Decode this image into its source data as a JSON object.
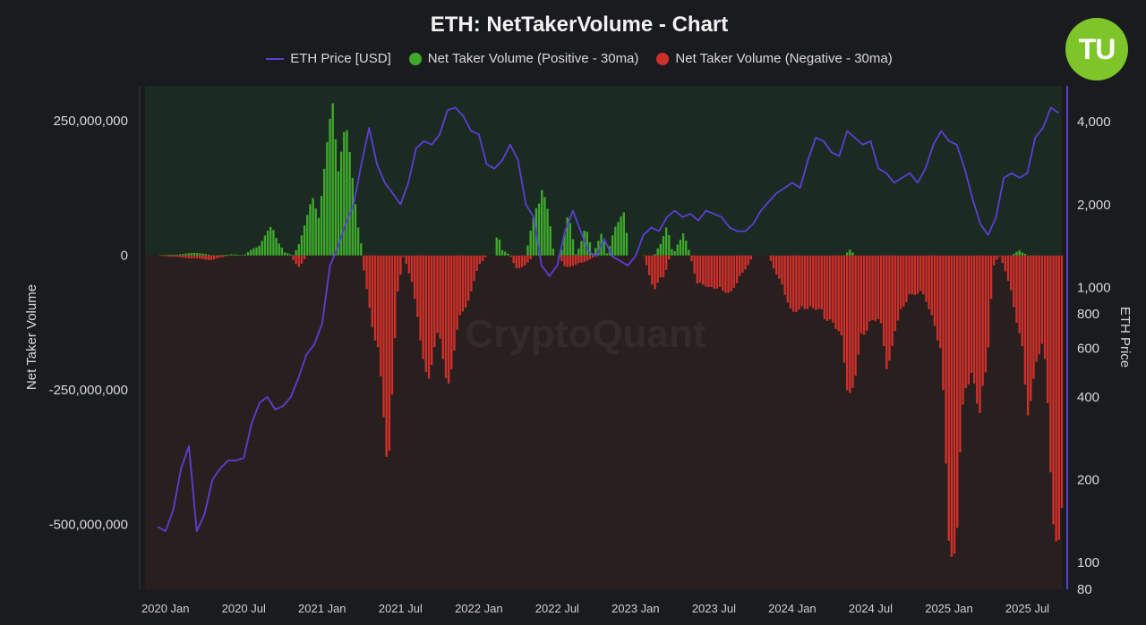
{
  "chart_data": {
    "type": "bar",
    "title": "ETH: NetTakerVolume - Chart",
    "watermark": "CryptoQuant",
    "legend": {
      "placement": "top-center",
      "entries": [
        {
          "label": "ETH Price [USD]",
          "color": "#5b3fd6",
          "kind": "line"
        },
        {
          "label": "Net Taker Volume (Positive - 30ma)",
          "color": "#3fa92c",
          "kind": "dot"
        },
        {
          "label": "Net Taker Volume (Negative - 30ma)",
          "color": "#d0302a",
          "kind": "dot"
        }
      ]
    },
    "ylabel": "Net Taker Volume",
    "y2label": "ETH Price",
    "ylim": [
      -620000000,
      315000000
    ],
    "y_ticks": [
      {
        "value": 250000000,
        "label": "250,000,000"
      },
      {
        "value": 0,
        "label": "0"
      },
      {
        "value": -250000000,
        "label": "-250,000,000"
      },
      {
        "value": -500000000,
        "label": "-500,000,000"
      }
    ],
    "y2lim": [
      80,
      5400
    ],
    "y2_scale": "log",
    "y2_ticks": [
      {
        "value": 4000,
        "label": "4,000"
      },
      {
        "value": 2000,
        "label": "2,000"
      },
      {
        "value": 1000,
        "label": "1,000"
      },
      {
        "value": 800,
        "label": "800"
      },
      {
        "value": 600,
        "label": "600"
      },
      {
        "value": 400,
        "label": "400"
      },
      {
        "value": 200,
        "label": "200"
      },
      {
        "value": 100,
        "label": "100"
      },
      {
        "value": 80,
        "label": "80"
      }
    ],
    "xlim": [
      2019.87,
      2025.72
    ],
    "x_ticks": [
      {
        "value": 2020.0,
        "label": "2020 Jan"
      },
      {
        "value": 2020.5,
        "label": "2020 Jul"
      },
      {
        "value": 2021.0,
        "label": "2021 Jan"
      },
      {
        "value": 2021.5,
        "label": "2021 Jul"
      },
      {
        "value": 2022.0,
        "label": "2022 Jan"
      },
      {
        "value": 2022.5,
        "label": "2022 Jul"
      },
      {
        "value": 2023.0,
        "label": "2023 Jan"
      },
      {
        "value": 2023.5,
        "label": "2023 Jul"
      },
      {
        "value": 2024.0,
        "label": "2024 Jan"
      },
      {
        "value": 2024.5,
        "label": "2024 Jul"
      },
      {
        "value": 2025.0,
        "label": "2025 Jan"
      },
      {
        "value": 2025.5,
        "label": "2025 Jul"
      }
    ],
    "series": [
      {
        "name": "Net Taker Volume (Positive - 30ma)",
        "color": "#3fa92c",
        "points": [
          [
            2019.95,
            0
          ],
          [
            2020.1,
            2000000
          ],
          [
            2020.2,
            5000000
          ],
          [
            2020.3,
            0
          ],
          [
            2020.45,
            2000000
          ],
          [
            2020.5,
            0
          ],
          [
            2020.6,
            20000000
          ],
          [
            2020.68,
            50000000
          ],
          [
            2020.76,
            5000000
          ],
          [
            2020.82,
            0
          ],
          [
            2020.9,
            60000000
          ],
          [
            2020.94,
            100000000
          ],
          [
            2020.98,
            80000000
          ],
          [
            2021.03,
            180000000
          ],
          [
            2021.07,
            265000000
          ],
          [
            2021.1,
            180000000
          ],
          [
            2021.15,
            220000000
          ],
          [
            2021.22,
            80000000
          ],
          [
            2021.26,
            0
          ],
          [
            2022.1,
            0
          ],
          [
            2022.12,
            50000000
          ],
          [
            2022.15,
            10000000
          ],
          [
            2022.2,
            0
          ],
          [
            2022.3,
            0
          ],
          [
            2022.36,
            80000000
          ],
          [
            2022.4,
            130000000
          ],
          [
            2022.45,
            60000000
          ],
          [
            2022.48,
            0
          ],
          [
            2022.52,
            0
          ],
          [
            2022.57,
            70000000
          ],
          [
            2022.62,
            0
          ],
          [
            2022.68,
            50000000
          ],
          [
            2022.73,
            0
          ],
          [
            2022.78,
            45000000
          ],
          [
            2022.82,
            0
          ],
          [
            2022.88,
            60000000
          ],
          [
            2022.92,
            90000000
          ],
          [
            2022.96,
            0
          ],
          [
            2023.12,
            0
          ],
          [
            2023.2,
            50000000
          ],
          [
            2023.24,
            0
          ],
          [
            2023.3,
            45000000
          ],
          [
            2023.35,
            0
          ],
          [
            2024.33,
            0
          ],
          [
            2024.37,
            10000000
          ],
          [
            2024.4,
            0
          ],
          [
            2025.4,
            0
          ],
          [
            2025.45,
            10000000
          ],
          [
            2025.5,
            0
          ],
          [
            2025.72,
            0
          ]
        ]
      },
      {
        "name": "Net Taker Volume (Negative - 30ma)",
        "color": "#d0302a",
        "points": [
          [
            2019.95,
            0
          ],
          [
            2020.3,
            -8000000
          ],
          [
            2020.4,
            0
          ],
          [
            2020.8,
            0
          ],
          [
            2020.85,
            -25000000
          ],
          [
            2020.9,
            0
          ],
          [
            2021.25,
            0
          ],
          [
            2021.3,
            -80000000
          ],
          [
            2021.36,
            -200000000
          ],
          [
            2021.42,
            -355000000
          ],
          [
            2021.48,
            -80000000
          ],
          [
            2021.52,
            0
          ],
          [
            2021.58,
            -50000000
          ],
          [
            2021.63,
            -180000000
          ],
          [
            2021.68,
            -200000000
          ],
          [
            2021.73,
            -150000000
          ],
          [
            2021.8,
            -215000000
          ],
          [
            2021.85,
            -160000000
          ],
          [
            2021.9,
            -100000000
          ],
          [
            2021.95,
            -60000000
          ],
          [
            2022.0,
            -20000000
          ],
          [
            2022.05,
            0
          ],
          [
            2022.2,
            0
          ],
          [
            2022.25,
            -30000000
          ],
          [
            2022.3,
            -15000000
          ],
          [
            2022.35,
            0
          ],
          [
            2022.5,
            0
          ],
          [
            2022.55,
            -20000000
          ],
          [
            2022.65,
            -15000000
          ],
          [
            2022.75,
            0
          ],
          [
            2023.05,
            0
          ],
          [
            2023.12,
            -60000000
          ],
          [
            2023.18,
            -40000000
          ],
          [
            2023.22,
            0
          ],
          [
            2023.35,
            0
          ],
          [
            2023.4,
            -60000000
          ],
          [
            2023.48,
            -50000000
          ],
          [
            2023.55,
            -70000000
          ],
          [
            2023.65,
            -50000000
          ],
          [
            2023.75,
            0
          ],
          [
            2023.85,
            0
          ],
          [
            2023.95,
            -70000000
          ],
          [
            2024.05,
            -110000000
          ],
          [
            2024.12,
            -80000000
          ],
          [
            2024.2,
            -120000000
          ],
          [
            2024.25,
            -100000000
          ],
          [
            2024.3,
            -150000000
          ],
          [
            2024.35,
            -230000000
          ],
          [
            2024.4,
            -210000000
          ],
          [
            2024.45,
            -160000000
          ],
          [
            2024.5,
            -100000000
          ],
          [
            2024.55,
            -120000000
          ],
          [
            2024.6,
            -200000000
          ],
          [
            2024.65,
            -130000000
          ],
          [
            2024.7,
            -110000000
          ],
          [
            2024.75,
            -60000000
          ],
          [
            2024.8,
            -70000000
          ],
          [
            2024.85,
            -80000000
          ],
          [
            2024.9,
            -100000000
          ],
          [
            2024.95,
            -200000000
          ],
          [
            2025.0,
            -480000000
          ],
          [
            2025.05,
            -500000000
          ],
          [
            2025.1,
            -250000000
          ],
          [
            2025.15,
            -180000000
          ],
          [
            2025.2,
            -320000000
          ],
          [
            2025.25,
            -160000000
          ],
          [
            2025.28,
            -20000000
          ],
          [
            2025.32,
            0
          ],
          [
            2025.4,
            -60000000
          ],
          [
            2025.45,
            -150000000
          ],
          [
            2025.5,
            -280000000
          ],
          [
            2025.55,
            -180000000
          ],
          [
            2025.62,
            -200000000
          ],
          [
            2025.66,
            -420000000
          ],
          [
            2025.7,
            -530000000
          ],
          [
            2025.72,
            -540000000
          ]
        ]
      },
      {
        "name": "ETH Price [USD]",
        "color": "#5b3fd6",
        "points": [
          [
            2019.95,
            135
          ],
          [
            2020.0,
            130
          ],
          [
            2020.05,
            155
          ],
          [
            2020.1,
            220
          ],
          [
            2020.15,
            265
          ],
          [
            2020.2,
            130
          ],
          [
            2020.25,
            150
          ],
          [
            2020.3,
            200
          ],
          [
            2020.35,
            220
          ],
          [
            2020.4,
            235
          ],
          [
            2020.45,
            235
          ],
          [
            2020.5,
            240
          ],
          [
            2020.55,
            320
          ],
          [
            2020.6,
            380
          ],
          [
            2020.65,
            400
          ],
          [
            2020.7,
            360
          ],
          [
            2020.75,
            370
          ],
          [
            2020.8,
            400
          ],
          [
            2020.85,
            470
          ],
          [
            2020.9,
            570
          ],
          [
            2020.95,
            620
          ],
          [
            2021.0,
            740
          ],
          [
            2021.05,
            1200
          ],
          [
            2021.1,
            1400
          ],
          [
            2021.15,
            1700
          ],
          [
            2021.2,
            2000
          ],
          [
            2021.25,
            2800
          ],
          [
            2021.3,
            3800
          ],
          [
            2021.35,
            2800
          ],
          [
            2021.4,
            2400
          ],
          [
            2021.45,
            2200
          ],
          [
            2021.5,
            2000
          ],
          [
            2021.55,
            2400
          ],
          [
            2021.6,
            3200
          ],
          [
            2021.65,
            3400
          ],
          [
            2021.7,
            3300
          ],
          [
            2021.75,
            3600
          ],
          [
            2021.8,
            4400
          ],
          [
            2021.85,
            4500
          ],
          [
            2021.9,
            4200
          ],
          [
            2021.95,
            3700
          ],
          [
            2022.0,
            3600
          ],
          [
            2022.05,
            2800
          ],
          [
            2022.1,
            2700
          ],
          [
            2022.15,
            2900
          ],
          [
            2022.2,
            3300
          ],
          [
            2022.25,
            2900
          ],
          [
            2022.3,
            2000
          ],
          [
            2022.35,
            1800
          ],
          [
            2022.4,
            1200
          ],
          [
            2022.45,
            1100
          ],
          [
            2022.5,
            1200
          ],
          [
            2022.55,
            1600
          ],
          [
            2022.6,
            1900
          ],
          [
            2022.65,
            1600
          ],
          [
            2022.7,
            1350
          ],
          [
            2022.75,
            1300
          ],
          [
            2022.8,
            1500
          ],
          [
            2022.85,
            1300
          ],
          [
            2022.9,
            1250
          ],
          [
            2022.95,
            1200
          ],
          [
            2023.0,
            1300
          ],
          [
            2023.05,
            1550
          ],
          [
            2023.1,
            1650
          ],
          [
            2023.15,
            1600
          ],
          [
            2023.2,
            1800
          ],
          [
            2023.25,
            1900
          ],
          [
            2023.3,
            1800
          ],
          [
            2023.35,
            1850
          ],
          [
            2023.4,
            1750
          ],
          [
            2023.45,
            1900
          ],
          [
            2023.5,
            1850
          ],
          [
            2023.55,
            1800
          ],
          [
            2023.6,
            1650
          ],
          [
            2023.65,
            1600
          ],
          [
            2023.7,
            1600
          ],
          [
            2023.75,
            1700
          ],
          [
            2023.8,
            1900
          ],
          [
            2023.85,
            2050
          ],
          [
            2023.9,
            2200
          ],
          [
            2023.95,
            2300
          ],
          [
            2024.0,
            2400
          ],
          [
            2024.05,
            2300
          ],
          [
            2024.1,
            2900
          ],
          [
            2024.15,
            3500
          ],
          [
            2024.2,
            3400
          ],
          [
            2024.25,
            3100
          ],
          [
            2024.3,
            3000
          ],
          [
            2024.35,
            3700
          ],
          [
            2024.4,
            3500
          ],
          [
            2024.45,
            3300
          ],
          [
            2024.5,
            3400
          ],
          [
            2024.55,
            2700
          ],
          [
            2024.6,
            2600
          ],
          [
            2024.65,
            2400
          ],
          [
            2024.7,
            2500
          ],
          [
            2024.75,
            2600
          ],
          [
            2024.8,
            2400
          ],
          [
            2024.85,
            2700
          ],
          [
            2024.9,
            3300
          ],
          [
            2024.95,
            3700
          ],
          [
            2025.0,
            3400
          ],
          [
            2025.05,
            3300
          ],
          [
            2025.1,
            2700
          ],
          [
            2025.15,
            2100
          ],
          [
            2025.2,
            1700
          ],
          [
            2025.25,
            1550
          ],
          [
            2025.3,
            1800
          ],
          [
            2025.35,
            2500
          ],
          [
            2025.4,
            2600
          ],
          [
            2025.45,
            2500
          ],
          [
            2025.5,
            2600
          ],
          [
            2025.55,
            3500
          ],
          [
            2025.6,
            3800
          ],
          [
            2025.65,
            4500
          ],
          [
            2025.7,
            4300
          ]
        ]
      }
    ]
  }
}
